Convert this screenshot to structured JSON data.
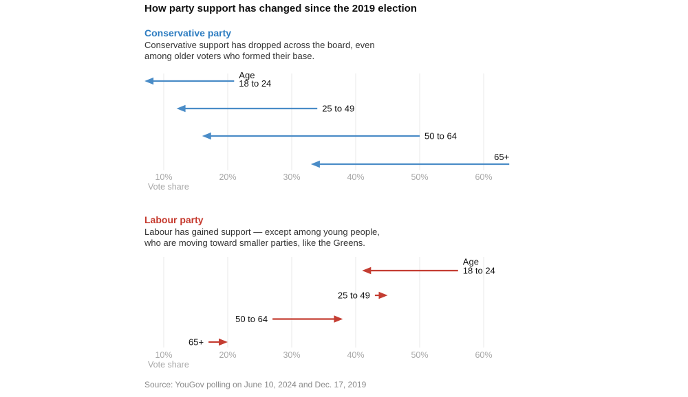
{
  "page": {
    "title": "How party support has changed since the 2019 election",
    "source": "Source: YouGov polling on June 10, 2024 and Dec. 17, 2019"
  },
  "colors": {
    "title_text": "#121212",
    "body_text": "#333333",
    "label_text": "#121212",
    "tick_text": "#a8a8a8",
    "source_text": "#8a8a8a",
    "gridline": "#e8e8e8",
    "conservative_blue": "#4a8cc7",
    "conservative_heading_blue": "#2e7dc1",
    "labour_red": "#c43d32",
    "labour_heading_red": "#c5382c"
  },
  "chart_data": [
    {
      "type": "dumbbell-arrow",
      "title": "Conservative party",
      "heading_color": "#2e7dc1",
      "color": "#4a8cc7",
      "subtitle_lines": [
        "Conservative support has dropped across the board, even",
        "among older voters who formed their base."
      ],
      "age_header_label": "Age",
      "xlabel": "Vote share",
      "x_ticks": [
        "10%",
        "20%",
        "30%",
        "40%",
        "50%",
        "60%"
      ],
      "x_tick_values": [
        10,
        20,
        30,
        40,
        50,
        60
      ],
      "xlim": [
        7,
        64
      ],
      "grid": true,
      "series_meaning": "arrow from 2019 vote share to 2024 vote share, percent",
      "rows": [
        {
          "category": "18 to 24",
          "from_2019": 21,
          "to_2024": 7,
          "age_header": true,
          "label_placement": "after-tail"
        },
        {
          "category": "25 to 49",
          "from_2019": 34,
          "to_2024": 12,
          "age_header": false,
          "label_placement": "after-tail"
        },
        {
          "category": "50 to 64",
          "from_2019": 50,
          "to_2024": 16,
          "age_header": false,
          "label_placement": "after-tail"
        },
        {
          "category": "65+",
          "from_2019": 64,
          "to_2024": 33,
          "age_header": false,
          "label_placement": "above-tail"
        }
      ]
    },
    {
      "type": "dumbbell-arrow",
      "title": "Labour party",
      "heading_color": "#c5382c",
      "color": "#c43d32",
      "subtitle_lines": [
        "Labour has gained support — except among young people,",
        "who are moving toward smaller parties, like the Greens."
      ],
      "age_header_label": "Age",
      "xlabel": "Vote share",
      "x_ticks": [
        "10%",
        "20%",
        "30%",
        "40%",
        "50%",
        "60%"
      ],
      "x_tick_values": [
        10,
        20,
        30,
        40,
        50,
        60
      ],
      "xlim": [
        17,
        56
      ],
      "grid": true,
      "series_meaning": "arrow from 2019 vote share to 2024 vote share, percent",
      "rows": [
        {
          "category": "18 to 24",
          "from_2019": 56,
          "to_2024": 41,
          "age_header": true,
          "label_placement": "after-tail"
        },
        {
          "category": "25 to 49",
          "from_2019": 43,
          "to_2024": 45,
          "age_header": false,
          "label_placement": "before-tail"
        },
        {
          "category": "50 to 64",
          "from_2019": 27,
          "to_2024": 38,
          "age_header": false,
          "label_placement": "before-tail"
        },
        {
          "category": "65+",
          "from_2019": 17,
          "to_2024": 20,
          "age_header": false,
          "label_placement": "before-tail"
        }
      ]
    }
  ]
}
